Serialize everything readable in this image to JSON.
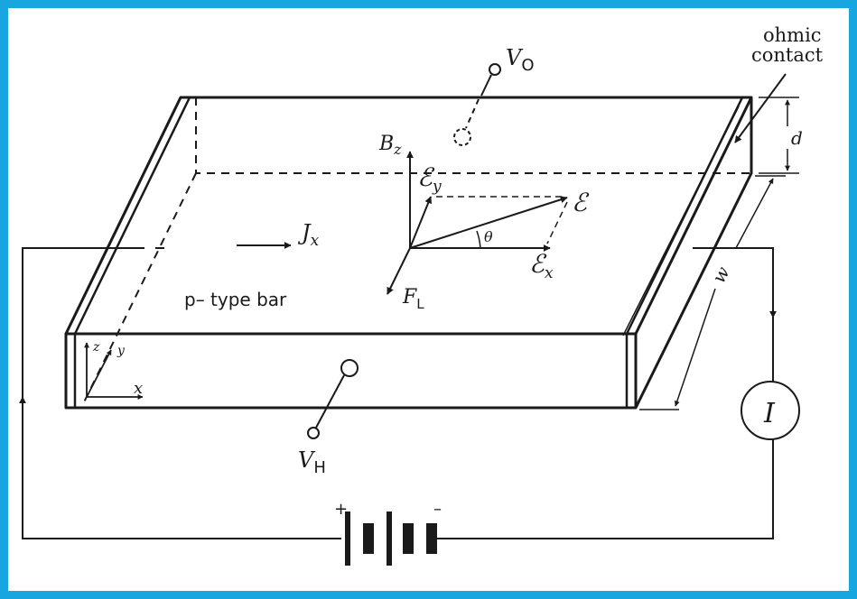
{
  "colors": {
    "frame": "#17a6e0",
    "paper": "#ffffff",
    "ink": "#1a1a1a"
  },
  "labels": {
    "v_o": {
      "main": "V",
      "sub": "O"
    },
    "ohmic_contact": {
      "line1": "ohmic",
      "line2": "contact"
    },
    "d": "d",
    "b_z": {
      "main": "B",
      "sub": "z"
    },
    "e_y": {
      "main": "ℰ",
      "sub": "y"
    },
    "e_total": "ℰ",
    "j_x": {
      "main": "J",
      "sub": "x"
    },
    "theta": "θ",
    "e_x": {
      "main": "ℰ",
      "sub": "x"
    },
    "f_l": {
      "main": "F",
      "sub": "L"
    },
    "w": "w",
    "p_type_bar": "p– type bar",
    "axis_z": "z",
    "axis_y": "y",
    "axis_x": "x",
    "current_meter": "I",
    "v_h": {
      "main": "V",
      "sub": "H"
    },
    "battery_plus": "+",
    "battery_minus": "–"
  }
}
